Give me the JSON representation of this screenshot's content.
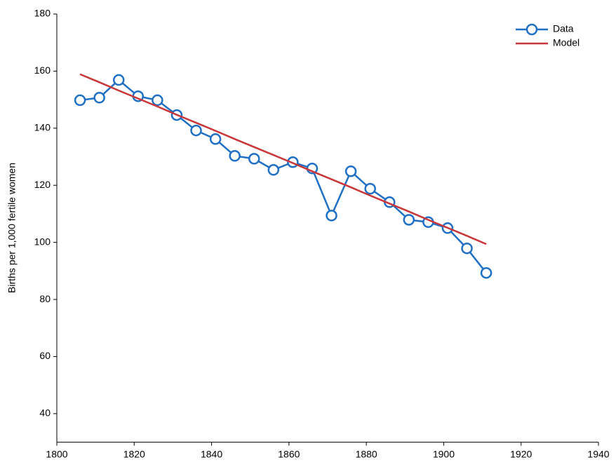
{
  "chart_data": {
    "type": "line",
    "ylabel": "Births per 1,000 fertile women",
    "x": [
      1806,
      1811,
      1816,
      1821,
      1826,
      1831,
      1836,
      1841,
      1846,
      1851,
      1856,
      1861,
      1866,
      1871,
      1876,
      1881,
      1886,
      1891,
      1896,
      1901,
      1906,
      1911
    ],
    "series": [
      {
        "name": "Data",
        "color": "#1f6fc4",
        "markers": true,
        "values": [
          149.8,
          150.7,
          156.9,
          151.2,
          149.8,
          144.6,
          139.2,
          136.2,
          130.3,
          129.3,
          125.4,
          128.1,
          125.9,
          109.4,
          124.9,
          118.8,
          114.1,
          107.9,
          107.1,
          105.0,
          97.9,
          89.3
        ]
      },
      {
        "name": "Model",
        "color": "#c8363a",
        "markers": false,
        "values": [
          158.9,
          156.1,
          153.2,
          150.4,
          147.6,
          144.7,
          141.9,
          139.1,
          136.2,
          133.4,
          130.6,
          127.8,
          124.9,
          122.1,
          119.3,
          116.4,
          113.6,
          110.8,
          107.9,
          105.1,
          102.3,
          99.4
        ]
      }
    ],
    "xlim": [
      1800,
      1940
    ],
    "xticks": [
      1800,
      1820,
      1840,
      1860,
      1880,
      1900,
      1920,
      1940
    ],
    "ylim": [
      30,
      180
    ],
    "yticks": [
      40,
      60,
      80,
      100,
      120,
      140,
      160,
      180
    ],
    "grid": false,
    "legend": "upper right"
  }
}
